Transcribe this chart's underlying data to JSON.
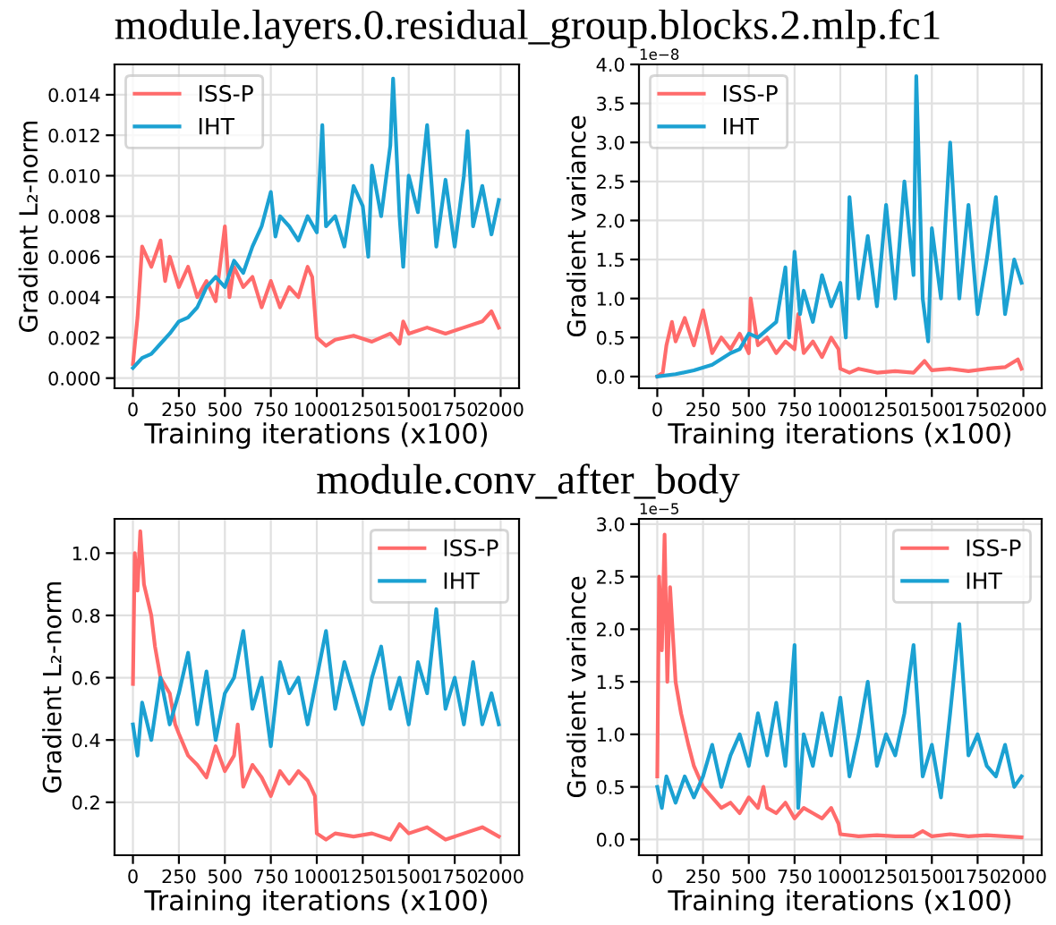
{
  "chart_data": [
    {
      "type": "line",
      "title": "module.layers.0.residual_group.blocks.2.mlp.fc1",
      "xlabel": "Training iterations (x100)",
      "ylabel": "Gradient L₂-norm",
      "legend": "top left",
      "grid": true,
      "xlim": [
        -100,
        2100
      ],
      "xticks": [
        0,
        250,
        500,
        750,
        1000,
        1250,
        1500,
        1750,
        2000
      ],
      "ylim": [
        -0.0005,
        0.0155
      ],
      "yticks": [
        {
          "value": 0,
          "label": "0.000"
        },
        {
          "value": 0.002,
          "label": "0.002"
        },
        {
          "value": 0.004,
          "label": "0.004"
        },
        {
          "value": 0.006,
          "label": "0.006"
        },
        {
          "value": 0.008,
          "label": "0.008"
        },
        {
          "value": 0.01,
          "label": "0.010"
        },
        {
          "value": 0.012,
          "label": "0.012"
        },
        {
          "value": 0.014,
          "label": "0.014"
        }
      ],
      "series": [
        {
          "name": "ISS-P",
          "color": "#ff6b6b",
          "x": [
            0,
            25,
            50,
            100,
            150,
            175,
            200,
            250,
            300,
            350,
            400,
            450,
            500,
            525,
            550,
            600,
            650,
            700,
            750,
            800,
            850,
            900,
            950,
            975,
            1000,
            1050,
            1100,
            1200,
            1300,
            1400,
            1450,
            1470,
            1500,
            1600,
            1700,
            1800,
            1900,
            1950,
            1990
          ],
          "values": [
            0.0007,
            0.003,
            0.0065,
            0.0055,
            0.0068,
            0.0048,
            0.006,
            0.0045,
            0.0055,
            0.004,
            0.0048,
            0.0038,
            0.0075,
            0.004,
            0.0055,
            0.0045,
            0.005,
            0.0035,
            0.0048,
            0.0035,
            0.0045,
            0.004,
            0.0055,
            0.005,
            0.002,
            0.0016,
            0.0019,
            0.0021,
            0.0018,
            0.0022,
            0.0017,
            0.0028,
            0.0022,
            0.0025,
            0.0022,
            0.0025,
            0.0028,
            0.0033,
            0.0025
          ]
        },
        {
          "name": "IHT",
          "color": "#1ba1d2",
          "x": [
            0,
            50,
            100,
            150,
            200,
            250,
            300,
            350,
            400,
            450,
            500,
            550,
            600,
            650,
            700,
            750,
            775,
            800,
            850,
            900,
            950,
            1000,
            1030,
            1050,
            1100,
            1150,
            1200,
            1250,
            1280,
            1300,
            1350,
            1400,
            1415,
            1450,
            1470,
            1500,
            1550,
            1600,
            1650,
            1700,
            1750,
            1800,
            1820,
            1850,
            1900,
            1950,
            1990
          ],
          "values": [
            0.0005,
            0.001,
            0.0012,
            0.0017,
            0.0022,
            0.0028,
            0.003,
            0.0035,
            0.0045,
            0.005,
            0.0045,
            0.0058,
            0.0052,
            0.0065,
            0.0075,
            0.0092,
            0.007,
            0.008,
            0.0075,
            0.0068,
            0.008,
            0.0072,
            0.0125,
            0.0075,
            0.008,
            0.0065,
            0.0095,
            0.0085,
            0.006,
            0.0105,
            0.008,
            0.0115,
            0.0148,
            0.008,
            0.0055,
            0.01,
            0.0082,
            0.0125,
            0.0065,
            0.0098,
            0.0065,
            0.01,
            0.0122,
            0.0075,
            0.0095,
            0.0071,
            0.0088
          ]
        }
      ]
    },
    {
      "type": "line",
      "xlabel": "Training iterations (x100)",
      "ylabel": "Gradient variance",
      "annotations": [
        "1e−8"
      ],
      "legend": "top left",
      "grid": true,
      "xlim": [
        -100,
        2100
      ],
      "xticks": [
        0,
        250,
        500,
        750,
        1000,
        1250,
        1500,
        1750,
        2000
      ],
      "ylim": [
        -0.15,
        4.0
      ],
      "yticks": [
        {
          "value": 0,
          "label": "0.0"
        },
        {
          "value": 0.5,
          "label": "0.5"
        },
        {
          "value": 1,
          "label": "1.0"
        },
        {
          "value": 1.5,
          "label": "1.5"
        },
        {
          "value": 2,
          "label": "2.0"
        },
        {
          "value": 2.5,
          "label": "2.5"
        },
        {
          "value": 3,
          "label": "3.0"
        },
        {
          "value": 3.5,
          "label": "3.5"
        },
        {
          "value": 4,
          "label": "4.0"
        }
      ],
      "series": [
        {
          "name": "ISS-P",
          "color": "#ff6b6b",
          "x": [
            0,
            30,
            50,
            80,
            100,
            150,
            200,
            250,
            300,
            350,
            400,
            450,
            500,
            510,
            550,
            600,
            650,
            700,
            750,
            770,
            800,
            850,
            900,
            950,
            990,
            1000,
            1050,
            1100,
            1200,
            1300,
            1400,
            1460,
            1500,
            1600,
            1700,
            1800,
            1900,
            1970,
            1990
          ],
          "values": [
            0.0,
            0.05,
            0.4,
            0.7,
            0.45,
            0.75,
            0.4,
            0.85,
            0.3,
            0.5,
            0.35,
            0.55,
            0.3,
            1.0,
            0.4,
            0.5,
            0.3,
            0.45,
            0.35,
            0.8,
            0.3,
            0.45,
            0.25,
            0.5,
            0.35,
            0.1,
            0.05,
            0.1,
            0.05,
            0.07,
            0.05,
            0.2,
            0.08,
            0.1,
            0.07,
            0.1,
            0.12,
            0.22,
            0.1
          ]
        },
        {
          "name": "IHT",
          "color": "#1ba1d2",
          "x": [
            0,
            100,
            200,
            300,
            400,
            450,
            500,
            550,
            600,
            650,
            700,
            720,
            750,
            780,
            800,
            850,
            900,
            950,
            1000,
            1030,
            1050,
            1100,
            1150,
            1200,
            1250,
            1300,
            1350,
            1400,
            1415,
            1450,
            1480,
            1500,
            1550,
            1600,
            1650,
            1700,
            1750,
            1800,
            1850,
            1900,
            1950,
            1990
          ],
          "values": [
            0.0,
            0.03,
            0.08,
            0.15,
            0.3,
            0.35,
            0.55,
            0.5,
            0.6,
            0.7,
            1.4,
            0.5,
            1.6,
            0.8,
            1.1,
            0.7,
            1.3,
            0.9,
            1.2,
            0.5,
            2.3,
            1.0,
            1.8,
            0.9,
            2.2,
            1.0,
            2.5,
            1.3,
            3.85,
            1.0,
            0.45,
            1.9,
            1.0,
            3.0,
            1.0,
            2.2,
            0.8,
            1.5,
            2.3,
            0.8,
            1.5,
            1.2
          ]
        }
      ]
    },
    {
      "type": "line",
      "title": "module.conv_after_body",
      "xlabel": "Training iterations (x100)",
      "ylabel": "Gradient L₂-norm",
      "legend": "top right",
      "grid": true,
      "xlim": [
        -100,
        2100
      ],
      "xticks": [
        0,
        250,
        500,
        750,
        1000,
        1250,
        1500,
        1750,
        2000
      ],
      "ylim": [
        0.03,
        1.11
      ],
      "yticks": [
        {
          "value": 0.2,
          "label": "0.2"
        },
        {
          "value": 0.4,
          "label": "0.4"
        },
        {
          "value": 0.6,
          "label": "0.6"
        },
        {
          "value": 0.8,
          "label": "0.8"
        },
        {
          "value": 1.0,
          "label": "1.0"
        }
      ],
      "series": [
        {
          "name": "ISS-P",
          "color": "#ff6b6b",
          "x": [
            0,
            10,
            25,
            40,
            60,
            80,
            100,
            120,
            150,
            200,
            230,
            250,
            300,
            350,
            400,
            450,
            500,
            550,
            570,
            600,
            650,
            700,
            750,
            800,
            850,
            900,
            950,
            990,
            1000,
            1050,
            1100,
            1200,
            1300,
            1400,
            1450,
            1500,
            1600,
            1700,
            1800,
            1900,
            1990
          ],
          "values": [
            0.58,
            1.0,
            0.88,
            1.07,
            0.9,
            0.85,
            0.8,
            0.7,
            0.6,
            0.55,
            0.45,
            0.42,
            0.35,
            0.32,
            0.28,
            0.38,
            0.3,
            0.35,
            0.45,
            0.25,
            0.32,
            0.28,
            0.22,
            0.3,
            0.26,
            0.3,
            0.27,
            0.22,
            0.1,
            0.08,
            0.1,
            0.09,
            0.1,
            0.08,
            0.13,
            0.1,
            0.12,
            0.08,
            0.1,
            0.12,
            0.09
          ]
        },
        {
          "name": "IHT",
          "color": "#1ba1d2",
          "x": [
            0,
            25,
            50,
            100,
            150,
            200,
            250,
            300,
            350,
            400,
            450,
            500,
            550,
            600,
            650,
            700,
            750,
            800,
            850,
            900,
            950,
            1000,
            1050,
            1100,
            1150,
            1200,
            1250,
            1300,
            1350,
            1400,
            1450,
            1500,
            1550,
            1600,
            1650,
            1700,
            1750,
            1800,
            1850,
            1900,
            1950,
            1990
          ],
          "values": [
            0.45,
            0.35,
            0.52,
            0.4,
            0.6,
            0.45,
            0.55,
            0.68,
            0.45,
            0.62,
            0.4,
            0.55,
            0.6,
            0.75,
            0.5,
            0.6,
            0.38,
            0.65,
            0.55,
            0.6,
            0.45,
            0.6,
            0.75,
            0.5,
            0.65,
            0.55,
            0.45,
            0.6,
            0.7,
            0.5,
            0.6,
            0.45,
            0.65,
            0.55,
            0.82,
            0.5,
            0.6,
            0.45,
            0.65,
            0.45,
            0.55,
            0.45
          ]
        }
      ]
    },
    {
      "type": "line",
      "xlabel": "Training iterations (x100)",
      "ylabel": "Gradient variance",
      "annotations": [
        "1e−5"
      ],
      "legend": "top right",
      "grid": true,
      "xlim": [
        -100,
        2100
      ],
      "xticks": [
        0,
        250,
        500,
        750,
        1000,
        1250,
        1500,
        1750,
        2000
      ],
      "ylim": [
        -0.15,
        3.05
      ],
      "yticks": [
        {
          "value": 0,
          "label": "0.0"
        },
        {
          "value": 0.5,
          "label": "0.5"
        },
        {
          "value": 1,
          "label": "1.0"
        },
        {
          "value": 1.5,
          "label": "1.5"
        },
        {
          "value": 2,
          "label": "2.0"
        },
        {
          "value": 2.5,
          "label": "2.5"
        },
        {
          "value": 3,
          "label": "3.0"
        }
      ],
      "series": [
        {
          "name": "ISS-P",
          "color": "#ff6b6b",
          "x": [
            0,
            10,
            25,
            40,
            55,
            70,
            100,
            130,
            170,
            200,
            250,
            300,
            350,
            400,
            450,
            500,
            550,
            580,
            600,
            650,
            700,
            750,
            800,
            850,
            900,
            950,
            990,
            1000,
            1100,
            1200,
            1300,
            1400,
            1450,
            1500,
            1600,
            1700,
            1800,
            1900,
            1990
          ],
          "values": [
            0.6,
            2.5,
            1.8,
            2.9,
            1.5,
            2.4,
            1.5,
            1.2,
            0.9,
            0.7,
            0.5,
            0.4,
            0.3,
            0.35,
            0.25,
            0.4,
            0.3,
            0.5,
            0.3,
            0.25,
            0.35,
            0.2,
            0.3,
            0.25,
            0.2,
            0.3,
            0.15,
            0.05,
            0.03,
            0.04,
            0.03,
            0.03,
            0.08,
            0.03,
            0.05,
            0.03,
            0.04,
            0.03,
            0.02
          ]
        },
        {
          "name": "IHT",
          "color": "#1ba1d2",
          "x": [
            0,
            25,
            50,
            100,
            150,
            200,
            250,
            300,
            350,
            400,
            450,
            500,
            550,
            600,
            650,
            700,
            750,
            770,
            800,
            850,
            900,
            950,
            1000,
            1050,
            1100,
            1150,
            1200,
            1250,
            1300,
            1350,
            1400,
            1450,
            1500,
            1550,
            1600,
            1650,
            1700,
            1750,
            1800,
            1850,
            1900,
            1950,
            1990
          ],
          "values": [
            0.5,
            0.3,
            0.6,
            0.35,
            0.6,
            0.4,
            0.6,
            0.9,
            0.5,
            0.8,
            1.0,
            0.7,
            1.2,
            0.8,
            1.3,
            0.7,
            1.85,
            0.3,
            1.0,
            0.7,
            1.2,
            0.8,
            1.35,
            0.6,
            1.0,
            1.5,
            0.7,
            1.0,
            0.8,
            1.2,
            1.85,
            0.6,
            0.9,
            0.4,
            1.2,
            2.05,
            0.8,
            1.0,
            0.7,
            0.6,
            0.9,
            0.5,
            0.6
          ]
        }
      ]
    }
  ]
}
